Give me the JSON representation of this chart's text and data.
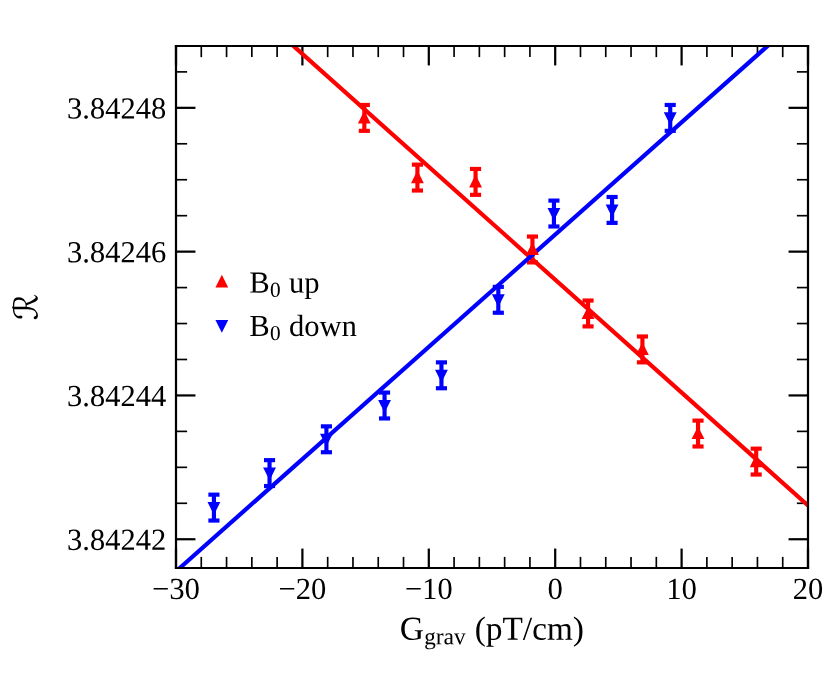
{
  "chart_data": {
    "type": "scatter",
    "xlabel": "G$_{grav}$ (pT/cm)",
    "ylabel": "ℛ",
    "xlim": [
      -30,
      20
    ],
    "xticks": [
      -30,
      -20,
      -10,
      0,
      10,
      20
    ],
    "ylim": [
      3.842416,
      3.8424886
    ],
    "yticks": [
      3.84242,
      3.84244,
      3.84246,
      3.84248
    ],
    "legend": "left",
    "grid": false,
    "series": [
      {
        "name": "B$_{0}$ up",
        "marker": "triangle",
        "color": "#ff0000",
        "x": [
          -15.1,
          -10.9,
          -6.3,
          -1.8,
          2.6,
          6.9,
          11.3,
          15.9
        ],
        "values": [
          3.8424786,
          3.8424703,
          3.8424697,
          3.8424603,
          3.8424514,
          3.8424464,
          3.8424347,
          3.8424308
        ],
        "errors": [
          1.8e-06,
          1.8e-06,
          1.8e-06,
          1.8e-06,
          1.8e-06,
          1.8e-06,
          1.8e-06,
          1.8e-06
        ]
      },
      {
        "name": "B$_{0}$ down",
        "marker": "triangle_down",
        "color": "#0000ff",
        "x": [
          -27.0,
          -22.6,
          -18.1,
          -13.5,
          -9.0,
          -4.5,
          -0.1,
          4.5,
          9.1
        ],
        "values": [
          3.8424244,
          3.8424292,
          3.8424339,
          3.8424386,
          3.8424428,
          3.8424533,
          3.8424653,
          3.8424658,
          3.8424786
        ],
        "errors": [
          1.8e-06,
          1.8e-06,
          1.8e-06,
          1.8e-06,
          1.8e-06,
          1.8e-06,
          1.8e-06,
          1.8e-06,
          1.8e-06
        ]
      },
      {
        "type": "line",
        "marker": "none",
        "line_style": "solid",
        "color": "#ff0000",
        "x": [
          -20.7,
          20
        ],
        "values": [
          3.8424886,
          3.8424247
        ]
      },
      {
        "type": "line",
        "marker": "none",
        "line_style": "solid",
        "color": "#0000ff",
        "x": [
          -29.7,
          16.8
        ],
        "values": [
          3.842416,
          3.8424886
        ]
      }
    ]
  }
}
